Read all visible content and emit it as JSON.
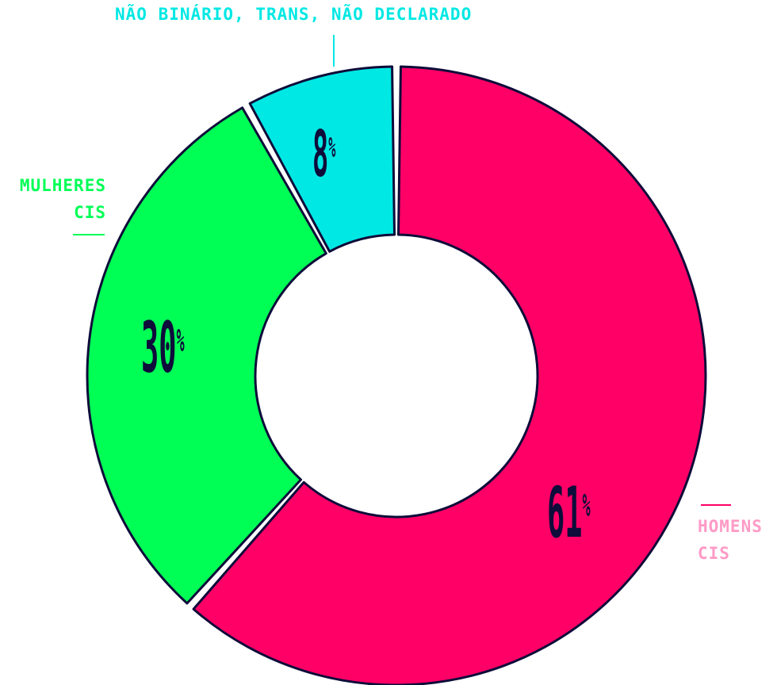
{
  "chart_data": {
    "type": "pie",
    "variant": "donut",
    "slices": [
      {
        "label_lines": [
          "HOMENS",
          "CIS"
        ],
        "value": 61,
        "display": "61",
        "color": "#ff0066",
        "legend_color": "#ff9ac6"
      },
      {
        "label_lines": [
          "MULHERES",
          "CIS"
        ],
        "value": 30,
        "display": "30",
        "color": "#00ff55",
        "legend_color": "#00ff55"
      },
      {
        "label_lines": [
          "NÃO BINÁRIO, TRANS, NÃO DECLARADO"
        ],
        "value": 8,
        "display": "8",
        "color": "#00e8e4",
        "legend_color": "#00e8e4"
      }
    ],
    "percent_symbol": "%",
    "outline_color": "#0e0c3a"
  }
}
